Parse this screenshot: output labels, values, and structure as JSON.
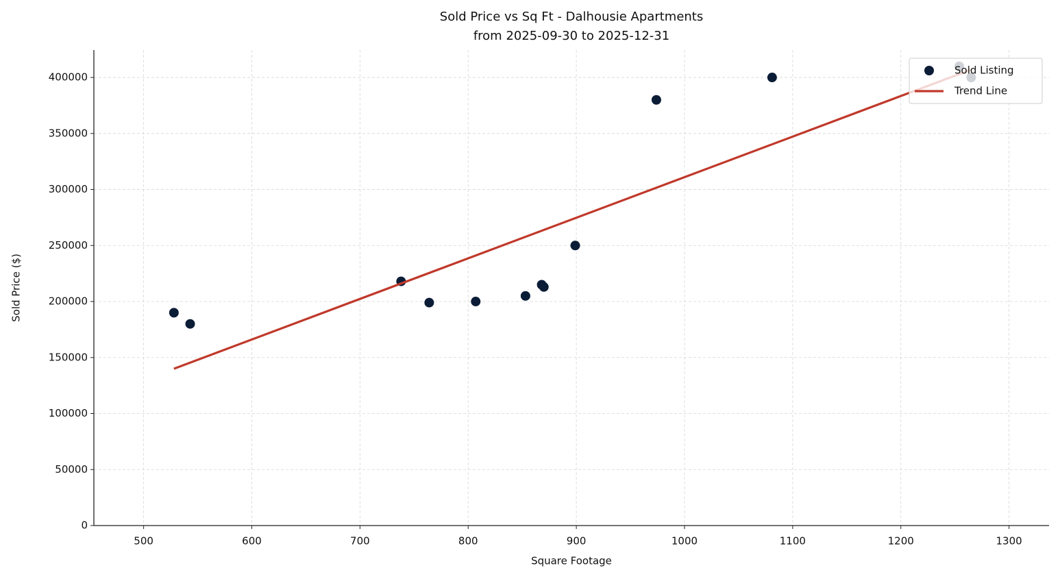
{
  "chart_data": {
    "type": "scatter",
    "title": "Sold Price vs Sq Ft - Dalhousie Apartments",
    "subtitle": "from 2025-09-30 to 2025-12-31",
    "x_label": "Square Footage",
    "y_label": "Sold Price ($)",
    "series": [
      {
        "name": "Sold Listing",
        "type": "scatter",
        "color": "#0b1c36",
        "x": [
          528,
          543,
          738,
          764,
          807,
          853,
          868,
          870,
          899,
          974,
          1081,
          1254,
          1265
        ],
        "values": [
          190000,
          180000,
          218000,
          199000,
          200000,
          205000,
          215000,
          213000,
          250000,
          380000,
          400000,
          410000,
          400000
        ]
      },
      {
        "name": "Trend Line",
        "type": "line",
        "color": "#c0392b",
        "x": [
          528,
          1265
        ],
        "values": [
          140000,
          407000
        ]
      }
    ],
    "xlim": [
      454,
      1337
    ],
    "ylim": [
      0,
      424500
    ],
    "xticks": [
      500,
      600,
      700,
      800,
      900,
      1000,
      1100,
      1200,
      1300
    ],
    "yticks": [
      0,
      50000,
      100000,
      150000,
      200000,
      250000,
      300000,
      350000,
      400000
    ],
    "grid": true,
    "legend": "upper right"
  }
}
